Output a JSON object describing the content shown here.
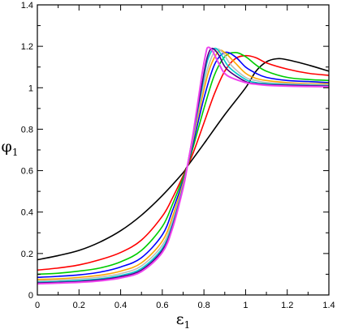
{
  "chart_data": {
    "type": "line",
    "title": "",
    "xlabel": "ε",
    "xlabel_subscript": "1",
    "ylabel": "φ",
    "ylabel_subscript": "1",
    "xlim": [
      0,
      1.4
    ],
    "ylim": [
      0,
      1.4
    ],
    "grid": false,
    "legend": "none",
    "x_ticks": [
      0,
      0.2,
      0.4,
      0.6,
      0.8,
      1.0,
      1.2,
      1.4
    ],
    "x_tick_labels": [
      "0",
      "0.2",
      "0.4",
      "0.6",
      "0.8",
      "1",
      "1.2",
      "1.4"
    ],
    "y_ticks": [
      0,
      0.2,
      0.4,
      0.6,
      0.8,
      1.0,
      1.2,
      1.4
    ],
    "y_tick_labels": [
      "0",
      "0.2",
      "0.4",
      "0.6",
      "0.8",
      "1",
      "1.2",
      "1.4"
    ],
    "series": [
      {
        "color": "#000000",
        "points": [
          [
            0,
            0.17
          ],
          [
            0.1,
            0.19
          ],
          [
            0.2,
            0.215
          ],
          [
            0.3,
            0.255
          ],
          [
            0.4,
            0.31
          ],
          [
            0.5,
            0.385
          ],
          [
            0.6,
            0.48
          ],
          [
            0.7,
            0.59
          ],
          [
            0.72,
            0.62
          ],
          [
            0.8,
            0.73
          ],
          [
            0.9,
            0.87
          ],
          [
            1.0,
            1.0
          ],
          [
            1.05,
            1.08
          ],
          [
            1.1,
            1.125
          ],
          [
            1.15,
            1.14
          ],
          [
            1.2,
            1.135
          ],
          [
            1.3,
            1.11
          ],
          [
            1.4,
            1.08
          ]
        ]
      },
      {
        "color": "#ff0000",
        "points": [
          [
            0,
            0.12
          ],
          [
            0.1,
            0.13
          ],
          [
            0.2,
            0.145
          ],
          [
            0.3,
            0.17
          ],
          [
            0.4,
            0.205
          ],
          [
            0.5,
            0.265
          ],
          [
            0.6,
            0.38
          ],
          [
            0.65,
            0.47
          ],
          [
            0.7,
            0.575
          ],
          [
            0.72,
            0.62
          ],
          [
            0.75,
            0.69
          ],
          [
            0.8,
            0.83
          ],
          [
            0.85,
            0.97
          ],
          [
            0.9,
            1.08
          ],
          [
            0.95,
            1.14
          ],
          [
            1.0,
            1.155
          ],
          [
            1.05,
            1.145
          ],
          [
            1.1,
            1.12
          ],
          [
            1.2,
            1.09
          ],
          [
            1.3,
            1.07
          ],
          [
            1.4,
            1.06
          ]
        ]
      },
      {
        "color": "#00cc00",
        "points": [
          [
            0,
            0.1
          ],
          [
            0.1,
            0.105
          ],
          [
            0.2,
            0.115
          ],
          [
            0.3,
            0.13
          ],
          [
            0.4,
            0.16
          ],
          [
            0.5,
            0.215
          ],
          [
            0.6,
            0.33
          ],
          [
            0.65,
            0.44
          ],
          [
            0.7,
            0.565
          ],
          [
            0.72,
            0.62
          ],
          [
            0.75,
            0.72
          ],
          [
            0.8,
            0.9
          ],
          [
            0.85,
            1.06
          ],
          [
            0.9,
            1.15
          ],
          [
            0.95,
            1.17
          ],
          [
            1.0,
            1.15
          ],
          [
            1.05,
            1.11
          ],
          [
            1.1,
            1.08
          ],
          [
            1.2,
            1.05
          ],
          [
            1.3,
            1.04
          ],
          [
            1.4,
            1.035
          ]
        ]
      },
      {
        "color": "#0000ff",
        "points": [
          [
            0,
            0.085
          ],
          [
            0.1,
            0.09
          ],
          [
            0.2,
            0.097
          ],
          [
            0.3,
            0.11
          ],
          [
            0.4,
            0.135
          ],
          [
            0.5,
            0.18
          ],
          [
            0.6,
            0.29
          ],
          [
            0.65,
            0.41
          ],
          [
            0.7,
            0.55
          ],
          [
            0.72,
            0.62
          ],
          [
            0.75,
            0.74
          ],
          [
            0.8,
            0.95
          ],
          [
            0.85,
            1.11
          ],
          [
            0.9,
            1.17
          ],
          [
            0.95,
            1.15
          ],
          [
            1.0,
            1.1
          ],
          [
            1.05,
            1.07
          ],
          [
            1.1,
            1.05
          ],
          [
            1.2,
            1.035
          ],
          [
            1.3,
            1.03
          ],
          [
            1.4,
            1.025
          ]
        ]
      },
      {
        "color": "#ffa500",
        "points": [
          [
            0,
            0.075
          ],
          [
            0.1,
            0.078
          ],
          [
            0.2,
            0.085
          ],
          [
            0.3,
            0.095
          ],
          [
            0.4,
            0.115
          ],
          [
            0.5,
            0.155
          ],
          [
            0.6,
            0.26
          ],
          [
            0.65,
            0.38
          ],
          [
            0.7,
            0.54
          ],
          [
            0.72,
            0.62
          ],
          [
            0.75,
            0.76
          ],
          [
            0.8,
            0.99
          ],
          [
            0.83,
            1.1
          ],
          [
            0.87,
            1.175
          ],
          [
            0.9,
            1.17
          ],
          [
            0.95,
            1.12
          ],
          [
            1.0,
            1.07
          ],
          [
            1.05,
            1.045
          ],
          [
            1.1,
            1.035
          ],
          [
            1.2,
            1.025
          ],
          [
            1.3,
            1.02
          ],
          [
            1.4,
            1.02
          ]
        ]
      },
      {
        "color": "#bbbbbb",
        "points": [
          [
            0,
            0.068
          ],
          [
            0.1,
            0.071
          ],
          [
            0.2,
            0.077
          ],
          [
            0.3,
            0.086
          ],
          [
            0.4,
            0.103
          ],
          [
            0.5,
            0.14
          ],
          [
            0.6,
            0.24
          ],
          [
            0.65,
            0.36
          ],
          [
            0.7,
            0.53
          ],
          [
            0.72,
            0.62
          ],
          [
            0.75,
            0.77
          ],
          [
            0.8,
            1.02
          ],
          [
            0.83,
            1.13
          ],
          [
            0.86,
            1.185
          ],
          [
            0.89,
            1.17
          ],
          [
            0.93,
            1.11
          ],
          [
            1.0,
            1.05
          ],
          [
            1.05,
            1.035
          ],
          [
            1.1,
            1.025
          ],
          [
            1.2,
            1.02
          ],
          [
            1.3,
            1.017
          ],
          [
            1.4,
            1.015
          ]
        ]
      },
      {
        "color": "#00cccc",
        "points": [
          [
            0,
            0.062
          ],
          [
            0.1,
            0.065
          ],
          [
            0.2,
            0.07
          ],
          [
            0.3,
            0.078
          ],
          [
            0.4,
            0.094
          ],
          [
            0.5,
            0.128
          ],
          [
            0.6,
            0.225
          ],
          [
            0.65,
            0.345
          ],
          [
            0.7,
            0.525
          ],
          [
            0.72,
            0.62
          ],
          [
            0.75,
            0.78
          ],
          [
            0.8,
            1.05
          ],
          [
            0.82,
            1.14
          ],
          [
            0.85,
            1.19
          ],
          [
            0.88,
            1.165
          ],
          [
            0.92,
            1.1
          ],
          [
            1.0,
            1.04
          ],
          [
            1.05,
            1.025
          ],
          [
            1.1,
            1.02
          ],
          [
            1.2,
            1.015
          ],
          [
            1.3,
            1.012
          ],
          [
            1.4,
            1.01
          ]
        ]
      },
      {
        "color": "#4b0082",
        "points": [
          [
            0,
            0.058
          ],
          [
            0.1,
            0.061
          ],
          [
            0.2,
            0.065
          ],
          [
            0.3,
            0.073
          ],
          [
            0.4,
            0.088
          ],
          [
            0.5,
            0.12
          ],
          [
            0.6,
            0.215
          ],
          [
            0.65,
            0.335
          ],
          [
            0.7,
            0.52
          ],
          [
            0.72,
            0.62
          ],
          [
            0.75,
            0.785
          ],
          [
            0.8,
            1.07
          ],
          [
            0.82,
            1.16
          ],
          [
            0.84,
            1.19
          ],
          [
            0.87,
            1.16
          ],
          [
            0.91,
            1.09
          ],
          [
            1.0,
            1.03
          ],
          [
            1.05,
            1.02
          ],
          [
            1.1,
            1.015
          ],
          [
            1.2,
            1.012
          ],
          [
            1.3,
            1.01
          ],
          [
            1.4,
            1.008
          ]
        ]
      },
      {
        "color": "#ee44ee",
        "points": [
          [
            0,
            0.054
          ],
          [
            0.1,
            0.057
          ],
          [
            0.2,
            0.061
          ],
          [
            0.3,
            0.068
          ],
          [
            0.4,
            0.082
          ],
          [
            0.5,
            0.113
          ],
          [
            0.6,
            0.205
          ],
          [
            0.65,
            0.325
          ],
          [
            0.7,
            0.515
          ],
          [
            0.72,
            0.62
          ],
          [
            0.75,
            0.79
          ],
          [
            0.79,
            1.06
          ],
          [
            0.81,
            1.17
          ],
          [
            0.82,
            1.195
          ],
          [
            0.84,
            1.18
          ],
          [
            0.87,
            1.12
          ],
          [
            0.91,
            1.06
          ],
          [
            1.0,
            1.025
          ],
          [
            1.05,
            1.017
          ],
          [
            1.1,
            1.012
          ],
          [
            1.2,
            1.008
          ],
          [
            1.3,
            1.006
          ],
          [
            1.4,
            1.005
          ]
        ]
      }
    ]
  }
}
